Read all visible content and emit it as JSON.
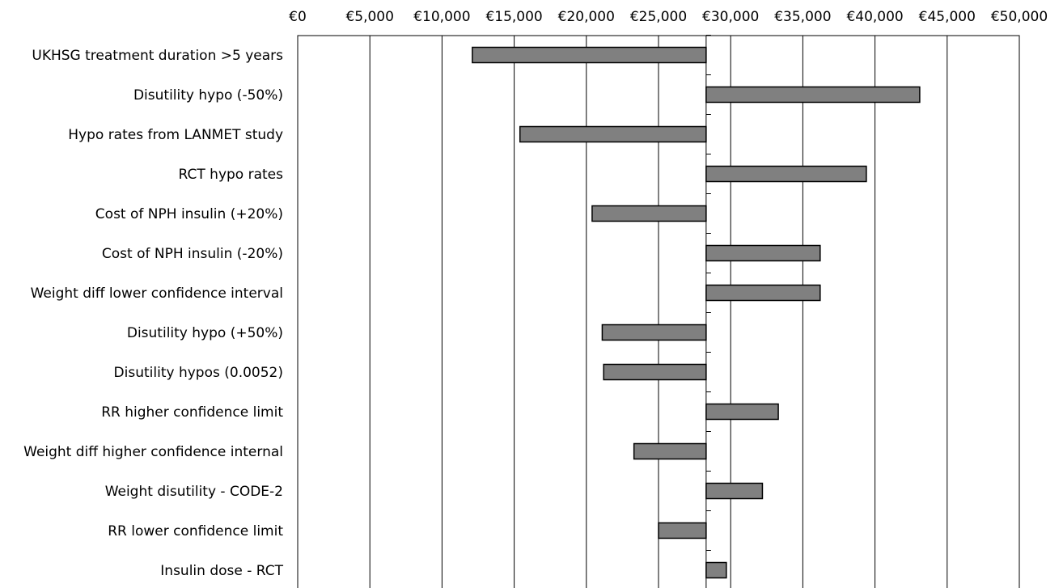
{
  "chart_data": {
    "type": "bar",
    "orientation": "horizontal",
    "chart_style": "tornado",
    "title": "",
    "xlabel": "",
    "ylabel": "",
    "xlim": [
      0,
      50000
    ],
    "x_ticks": [
      0,
      5000,
      10000,
      15000,
      20000,
      25000,
      30000,
      35000,
      40000,
      45000,
      50000
    ],
    "x_tick_labels": [
      "€0",
      "€5,000",
      "€10,000",
      "€15,000",
      "€20,000",
      "€25,000",
      "€30,000",
      "€35,000",
      "€40,000",
      "€45,000",
      "€50,000"
    ],
    "x_axis_position": "top",
    "grid": true,
    "legend": "none",
    "baseline": 28300,
    "bar_color": "#808080",
    "categories": [
      "UKHSG treatment duration >5 years",
      "Disutility hypo (-50%)",
      "Hypo rates from LANMET study",
      "RCT hypo rates",
      "Cost of NPH insulin (+20%)",
      "Cost of NPH insulin (-20%)",
      "Weight diff lower confidence interval",
      "Disutility hypo (+50%)",
      "Disutility  hypos (0.0052)",
      "RR higher confidence limit",
      "Weight diff higher confidence internal",
      "Weight disutility - CODE-2",
      "RR lower confidence limit",
      "Insulin dose - RCT"
    ],
    "values": [
      12100,
      43100,
      15400,
      39400,
      20400,
      36200,
      36200,
      21100,
      21200,
      33300,
      23300,
      32200,
      25000,
      29700
    ]
  }
}
